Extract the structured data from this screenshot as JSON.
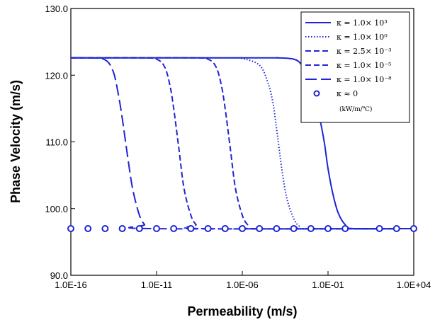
{
  "chart_data": {
    "type": "line",
    "xlabel": "Permeability (m/s)",
    "ylabel": "Phase Velocity (m/s)",
    "xscale": "log",
    "xlim": [
      1e-16,
      10000.0
    ],
    "ylim": [
      90,
      130
    ],
    "x_ticks": [
      {
        "value": 1e-16,
        "label": "1.0E-16"
      },
      {
        "value": 1e-11,
        "label": "1.0E-11"
      },
      {
        "value": 1e-06,
        "label": "1.0E-06"
      },
      {
        "value": 0.1,
        "label": "1.0E-01"
      },
      {
        "value": 10000.0,
        "label": "1.0E+04"
      }
    ],
    "y_ticks": [
      {
        "value": 90,
        "label": "90.0"
      },
      {
        "value": 100,
        "label": "100.0"
      },
      {
        "value": 110,
        "label": "110.0"
      },
      {
        "value": 120,
        "label": "120.0"
      },
      {
        "value": 130,
        "label": "130.0"
      }
    ],
    "grid": false,
    "legend_position": "top-right",
    "legend_unit": "(kW/m/℃)",
    "series_color": "#1f24d6",
    "series": [
      {
        "name": "κ = 1.0× 10³",
        "style": "solid",
        "x": [
          1e-16,
          1e-05,
          0.0001,
          0.001,
          0.003,
          0.01,
          0.03,
          0.06,
          0.1,
          0.2,
          0.4,
          1,
          3,
          10000.0
        ],
        "y": [
          122.6,
          122.6,
          122.6,
          122.4,
          121.5,
          119.0,
          114.0,
          110.0,
          106.0,
          102.0,
          99.3,
          97.6,
          97.0,
          97.0
        ]
      },
      {
        "name": "κ = 1.0× 10⁰",
        "style": "dotted",
        "x": [
          1e-16,
          1e-07,
          1e-06,
          1e-05,
          3e-05,
          6e-05,
          0.0001,
          0.0002,
          0.0004,
          0.001,
          0.002,
          0.004,
          10000.0
        ],
        "y": [
          122.6,
          122.6,
          122.5,
          121.5,
          119.0,
          116.0,
          112.0,
          106.0,
          101.5,
          98.5,
          97.4,
          97.0,
          97.0
        ]
      },
      {
        "name": "κ = 2.5× 10⁻³",
        "style": "dashed",
        "x": [
          1e-16,
          1e-09,
          1e-08,
          3e-08,
          6e-08,
          1e-07,
          2e-07,
          4e-07,
          1e-06,
          2e-06,
          4e-06,
          10000.0
        ],
        "y": [
          122.6,
          122.6,
          122.4,
          121.2,
          118.5,
          115.0,
          109.0,
          103.0,
          99.0,
          97.6,
          97.0,
          97.0
        ]
      },
      {
        "name": "κ = 1.0× 10⁻⁵",
        "style": "dashed",
        "x": [
          1e-16,
          1e-12,
          1e-11,
          3e-11,
          6e-11,
          1e-10,
          2e-10,
          4e-10,
          1e-09,
          2e-09,
          4e-09,
          10000.0
        ],
        "y": [
          122.6,
          122.6,
          122.4,
          121.2,
          118.5,
          115.0,
          109.0,
          103.0,
          99.0,
          97.6,
          97.0,
          97.0
        ]
      },
      {
        "name": "κ = 1.0× 10⁻⁸",
        "style": "longdash",
        "x": [
          1e-16,
          1e-15,
          1e-14,
          3e-14,
          6e-14,
          1e-13,
          2e-13,
          4e-13,
          1e-12,
          2e-12,
          4e-12,
          10000.0
        ],
        "y": [
          122.6,
          122.6,
          122.3,
          120.5,
          117.0,
          113.5,
          108.0,
          103.0,
          99.0,
          97.6,
          97.0,
          97.0
        ]
      },
      {
        "name": "κ ≈ 0",
        "style": "circles",
        "x": [
          1e-16,
          1e-15,
          1e-14,
          1e-13,
          1e-12,
          1e-11,
          1e-10,
          1e-09,
          1e-08,
          1e-07,
          1e-06,
          1e-05,
          0.0001,
          0.001,
          0.01,
          0.1,
          1,
          100.0,
          1000.0,
          10000.0
        ],
        "y": [
          97,
          97,
          97,
          97,
          97,
          97,
          97,
          97,
          97,
          97,
          97,
          97,
          97,
          97,
          97,
          97,
          97,
          97,
          97,
          97
        ]
      }
    ]
  }
}
